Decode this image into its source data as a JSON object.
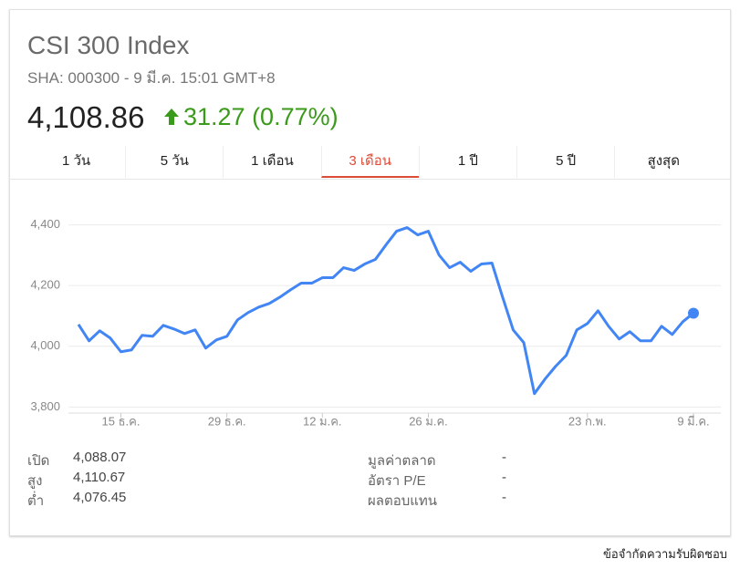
{
  "header": {
    "title": "CSI 300 Index",
    "subtitle": "SHA: 000300 - 9 มี.ค. 15:01 GMT+8",
    "price": "4,108.86",
    "change": "31.27 (0.77%)"
  },
  "tabs": [
    {
      "label": "1 วัน",
      "selected": false
    },
    {
      "label": "5 วัน",
      "selected": false
    },
    {
      "label": "1 เดือน",
      "selected": false
    },
    {
      "label": "3 เดือน",
      "selected": true
    },
    {
      "label": "1 ปี",
      "selected": false
    },
    {
      "label": "5 ปี",
      "selected": false
    },
    {
      "label": "สูงสุด",
      "selected": false
    }
  ],
  "chart_data": {
    "type": "line",
    "color": "#4285f4",
    "grid": true,
    "categories": [
      null,
      null,
      null,
      null,
      "15 ธ.ค.",
      null,
      null,
      null,
      null,
      null,
      null,
      null,
      null,
      null,
      "29 ธ.ค.",
      null,
      null,
      null,
      null,
      null,
      null,
      null,
      null,
      "12 ม.ค.",
      null,
      null,
      null,
      null,
      null,
      null,
      null,
      null,
      null,
      "26 ม.ค.",
      null,
      null,
      null,
      null,
      null,
      null,
      null,
      null,
      null,
      null,
      null,
      null,
      null,
      null,
      "23 ก.พ.",
      null,
      null,
      null,
      null,
      null,
      null,
      null,
      null,
      null,
      "9 มี.ค."
    ],
    "values": [
      4072,
      4018,
      4051,
      4027,
      3982,
      3988,
      4036,
      4033,
      4069,
      4057,
      4042,
      4054,
      3994,
      4021,
      4033,
      4087,
      4111,
      4129,
      4141,
      4162,
      4186,
      4208,
      4208,
      4226,
      4226,
      4259,
      4250,
      4271,
      4286,
      4334,
      4379,
      4391,
      4367,
      4379,
      4301,
      4259,
      4277,
      4247,
      4271,
      4274,
      4162,
      4054,
      4012,
      3844,
      3892,
      3934,
      3970,
      4054,
      4075,
      4117,
      4066,
      4024,
      4048,
      4018,
      4018,
      4066,
      4039,
      4081,
      4109
    ],
    "ylim": [
      3780,
      4540
    ],
    "yticks": [
      {
        "value": 3800,
        "label": "3,800"
      },
      {
        "value": 4000,
        "label": "4,000"
      },
      {
        "value": 4200,
        "label": "4,200"
      },
      {
        "value": 4400,
        "label": "4,400"
      }
    ]
  },
  "stats": {
    "left": [
      {
        "label": "เปิด",
        "value": "4,088.07"
      },
      {
        "label": "สูง",
        "value": "4,110.67"
      },
      {
        "label": "ต่ำ",
        "value": "4,076.45"
      }
    ],
    "right": [
      {
        "label": "มูลค่าตลาด",
        "value": "-"
      },
      {
        "label": "อัตรา P/E",
        "value": "-"
      },
      {
        "label": "ผลตอบแทน",
        "value": "-"
      }
    ]
  },
  "footer": "ข้อจำกัดความรับผิดชอบ"
}
